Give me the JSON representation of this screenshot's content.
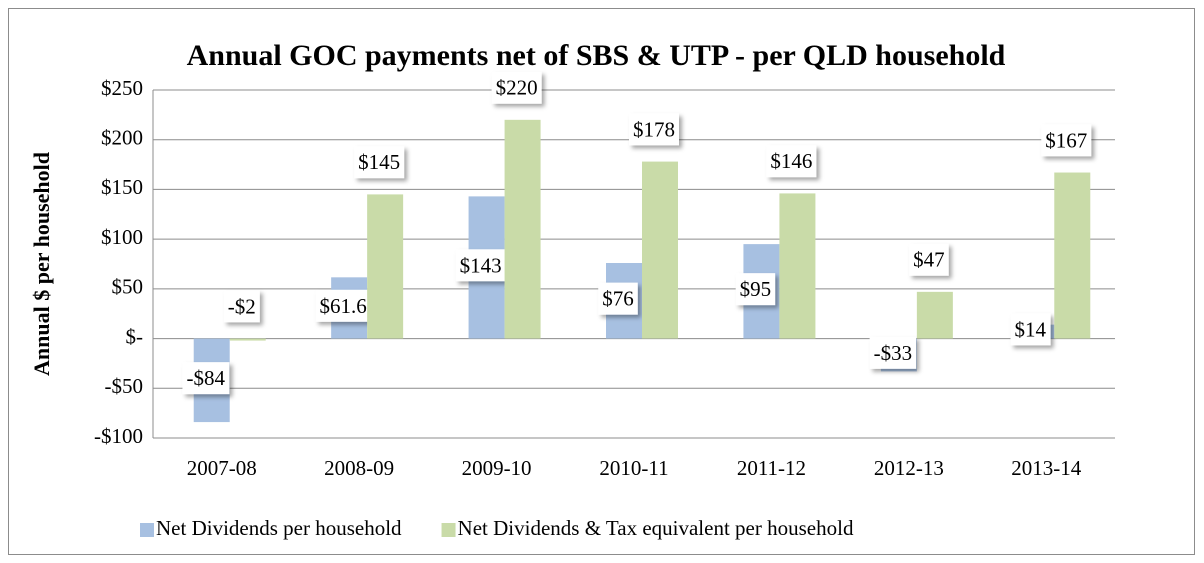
{
  "chart_data": {
    "type": "bar",
    "title": "Annual GOC payments net of SBS & UTP - per QLD household",
    "y_label": "Annual $ per household",
    "categories": [
      "2007-08",
      "2008-09",
      "2009-10",
      "2010-11",
      "2011-12",
      "2012-13",
      "2013-14"
    ],
    "series": [
      {
        "name": "Net Dividends per household",
        "color": "#a7c0e1",
        "values": [
          -84,
          61.6,
          143,
          76,
          95,
          -33,
          14
        ],
        "value_labels": [
          "-$84",
          "$61.6",
          "$143",
          "$76",
          "$95",
          "-$33",
          "$14"
        ]
      },
      {
        "name": "Net Dividends & Tax equivalent per household",
        "color": "#c9dba8",
        "values": [
          -2,
          145,
          220,
          178,
          146,
          47,
          167
        ],
        "value_labels": [
          "-$2",
          "$145",
          "$220",
          "$178",
          "$146",
          "$47",
          "$167"
        ]
      }
    ],
    "ylim": [
      -100,
      250
    ],
    "yticks": [
      {
        "value": -100,
        "label": "-$100"
      },
      {
        "value": -50,
        "label": "-$50"
      },
      {
        "value": 0,
        "label": "$-"
      },
      {
        "value": 50,
        "label": "$50"
      },
      {
        "value": 100,
        "label": "$100"
      },
      {
        "value": 150,
        "label": "$150"
      },
      {
        "value": 200,
        "label": "$200"
      },
      {
        "value": 250,
        "label": "$250"
      }
    ],
    "grid": true,
    "legend": "bottom"
  }
}
